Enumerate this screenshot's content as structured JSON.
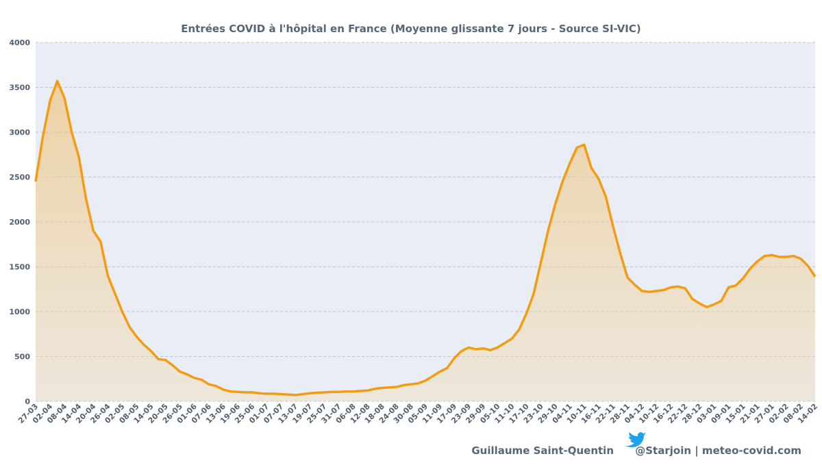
{
  "chart_data": {
    "type": "line",
    "title": "Entrées COVID à l'hôpital en France (Moyenne glissante 7 jours - Source SI-VIC)",
    "categories": [
      "27-03",
      null,
      "02-04",
      null,
      "08-04",
      null,
      "14-04",
      null,
      "20-04",
      null,
      "26-04",
      null,
      "02-05",
      null,
      "08-05",
      null,
      "14-05",
      null,
      "20-05",
      null,
      "26-05",
      null,
      "01-06",
      null,
      "07-06",
      null,
      "13-06",
      null,
      "19-06",
      null,
      "25-06",
      null,
      "01-07",
      null,
      "07-07",
      null,
      "13-07",
      null,
      "19-07",
      null,
      "25-07",
      null,
      "31-07",
      null,
      "06-08",
      null,
      "12-08",
      null,
      "18-08",
      null,
      "24-08",
      null,
      "30-08",
      null,
      "05-09",
      null,
      "11-09",
      null,
      "17-09",
      null,
      "23-09",
      null,
      "29-09",
      null,
      "05-10",
      null,
      "11-10",
      null,
      "17-10",
      null,
      "23-10",
      null,
      "29-10",
      null,
      "04-11",
      null,
      "10-11",
      null,
      "16-11",
      null,
      "22-11",
      null,
      "28-11",
      null,
      "04-12",
      null,
      "10-12",
      null,
      "16-12",
      null,
      "22-12",
      null,
      "28-12",
      null,
      "03-01",
      null,
      "09-01",
      null,
      "15-01",
      null,
      "21-01",
      null,
      "27-01",
      null,
      "02-02",
      null,
      "08-02",
      null,
      "14-02"
    ],
    "series": [
      {
        "name": "Entrées COVID",
        "color": "#f39c12",
        "values": [
          2450,
          2950,
          3350,
          3570,
          3380,
          3000,
          2720,
          2250,
          1900,
          1780,
          1400,
          1200,
          1000,
          830,
          720,
          630,
          560,
          470,
          460,
          400,
          330,
          300,
          260,
          240,
          190,
          170,
          130,
          110,
          105,
          100,
          100,
          90,
          85,
          85,
          80,
          75,
          70,
          80,
          90,
          95,
          100,
          105,
          105,
          110,
          110,
          115,
          120,
          140,
          150,
          155,
          160,
          180,
          190,
          200,
          230,
          280,
          330,
          370,
          480,
          560,
          600,
          580,
          590,
          570,
          600,
          650,
          700,
          800,
          980,
          1200,
          1550,
          1900,
          2200,
          2450,
          2650,
          2830,
          2860,
          2600,
          2480,
          2280,
          1950,
          1650,
          1380,
          1300,
          1230,
          1220,
          1230,
          1240,
          1270,
          1280,
          1260,
          1140,
          1090,
          1050,
          1080,
          1120,
          1270,
          1290,
          1370,
          1480,
          1560,
          1620,
          1630,
          1610,
          1610,
          1620,
          1590,
          1510,
          1390
        ]
      }
    ],
    "ylim": [
      0,
      4000
    ],
    "yticks": [
      0,
      500,
      1000,
      1500,
      2000,
      2500,
      3000,
      3500,
      4000
    ],
    "grid": true,
    "author": "Guillaume Saint-Quentin",
    "credit": "@Starjoin | meteo-covid.com"
  }
}
